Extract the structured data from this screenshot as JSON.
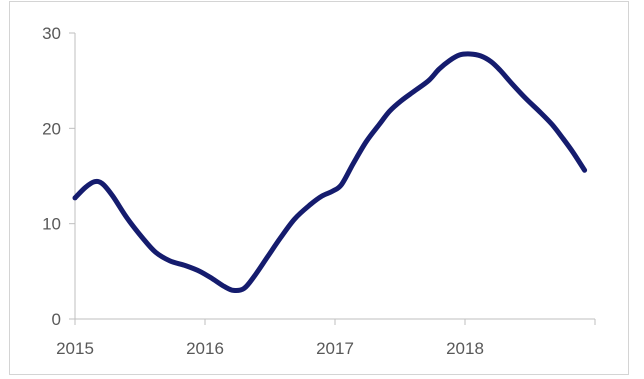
{
  "chart_data": {
    "type": "line",
    "title": "",
    "xlabel": "",
    "ylabel": "",
    "xlim": [
      2015,
      2019
    ],
    "ylim": [
      0,
      30
    ],
    "x_ticks": [
      "2015",
      "2016",
      "2017",
      "2018"
    ],
    "y_ticks": [
      "0",
      "10",
      "20",
      "30"
    ],
    "grid": false,
    "legend": "none",
    "series": [
      {
        "color": "#151c6e",
        "points": [
          [
            2015.0,
            12.7
          ],
          [
            2015.08,
            13.8
          ],
          [
            2015.15,
            14.4
          ],
          [
            2015.21,
            14.2
          ],
          [
            2015.29,
            12.9
          ],
          [
            2015.4,
            10.6
          ],
          [
            2015.52,
            8.5
          ],
          [
            2015.62,
            7.0
          ],
          [
            2015.73,
            6.1
          ],
          [
            2015.85,
            5.6
          ],
          [
            2015.96,
            5.0
          ],
          [
            2016.06,
            4.2
          ],
          [
            2016.15,
            3.4
          ],
          [
            2016.22,
            3.0
          ],
          [
            2016.3,
            3.2
          ],
          [
            2016.38,
            4.5
          ],
          [
            2016.48,
            6.5
          ],
          [
            2016.58,
            8.5
          ],
          [
            2016.69,
            10.5
          ],
          [
            2016.81,
            12.0
          ],
          [
            2016.9,
            12.9
          ],
          [
            2016.98,
            13.4
          ],
          [
            2017.05,
            14.1
          ],
          [
            2017.14,
            16.3
          ],
          [
            2017.24,
            18.6
          ],
          [
            2017.34,
            20.4
          ],
          [
            2017.42,
            21.8
          ],
          [
            2017.51,
            22.9
          ],
          [
            2017.61,
            23.9
          ],
          [
            2017.72,
            25.0
          ],
          [
            2017.8,
            26.2
          ],
          [
            2017.88,
            27.1
          ],
          [
            2017.96,
            27.7
          ],
          [
            2018.04,
            27.8
          ],
          [
            2018.12,
            27.6
          ],
          [
            2018.2,
            27.0
          ],
          [
            2018.27,
            26.1
          ],
          [
            2018.36,
            24.7
          ],
          [
            2018.47,
            23.1
          ],
          [
            2018.57,
            21.8
          ],
          [
            2018.67,
            20.4
          ],
          [
            2018.75,
            19.0
          ],
          [
            2018.83,
            17.5
          ],
          [
            2018.92,
            15.6
          ]
        ]
      }
    ]
  }
}
